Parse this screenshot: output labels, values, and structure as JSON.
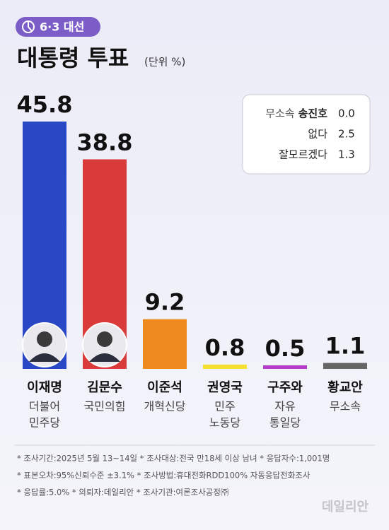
{
  "badge": "6·3 대선",
  "chart_data": {
    "type": "bar",
    "title": "대통령 투표",
    "unit": "(단위 %)",
    "categories": [
      "이재명",
      "김문수",
      "이준석",
      "권영국",
      "구주와",
      "황교안"
    ],
    "parties": [
      [
        "더불어",
        "민주당"
      ],
      [
        "국민의힘"
      ],
      [
        "개혁신당"
      ],
      [
        "민주",
        "노동당"
      ],
      [
        "자유",
        "통일당"
      ],
      [
        "무소속"
      ]
    ],
    "values": [
      45.8,
      38.8,
      9.2,
      0.8,
      0.5,
      1.1
    ],
    "colors": [
      "#2a48c6",
      "#d93b3b",
      "#ef8a1f",
      "#f3e031",
      "#b23cc9",
      "#666666"
    ],
    "photos": [
      true,
      true,
      false,
      false,
      false,
      false
    ]
  },
  "others": [
    {
      "party": "무소속",
      "name": "송진호",
      "value": "0.0"
    },
    {
      "name": "없다",
      "value": "2.5"
    },
    {
      "name": "잘모르겠다",
      "value": "1.3"
    }
  ],
  "notes": [
    "* 조사기간:2025년 5월 13~14일  * 조사대상:전국 만18세 이상 남녀  * 응답자수:1,001명",
    "* 표본오차:95%신뢰수준 ±3.1%  * 조사방법:휴대전화RDD100% 자동응답전화조사",
    "* 응답률:5.0%  * 의뢰자:데일리안  * 조사기관:여론조사공정㈜"
  ],
  "watermark": "데일리안"
}
